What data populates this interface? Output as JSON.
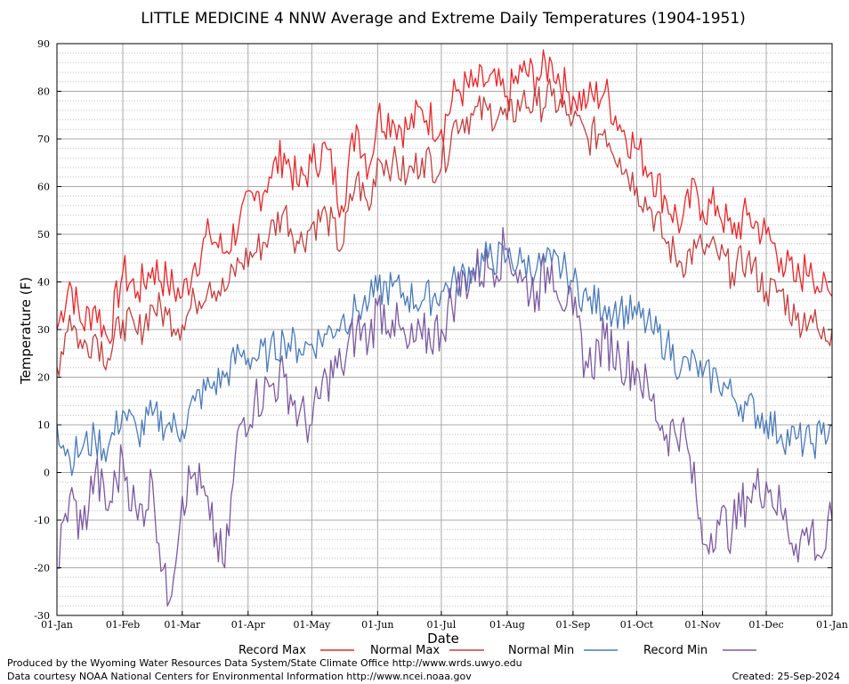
{
  "chart_data": {
    "type": "line",
    "title": "LITTLE MEDICINE 4 NNW Average and Extreme Daily Temperatures (1904-1951)",
    "xlabel": "Date",
    "ylabel": "Temperature (F)",
    "ylim": [
      -30,
      90
    ],
    "y_ticks": [
      "-30",
      "-20",
      "-10",
      "0",
      "10",
      "20",
      "30",
      "40",
      "50",
      "60",
      "70",
      "80",
      "90"
    ],
    "x_ticks": [
      "01-Jan",
      "01-Feb",
      "01-Mar",
      "01-Apr",
      "01-May",
      "01-Jun",
      "01-Jul",
      "01-Aug",
      "01-Sep",
      "01-Oct",
      "01-Nov",
      "01-Dec",
      "01-Jan"
    ],
    "x_tick_days": [
      0,
      31,
      59,
      90,
      120,
      151,
      181,
      212,
      243,
      273,
      304,
      334,
      365
    ],
    "grid": true,
    "legend_position": "bottom",
    "series": [
      {
        "name": "Record Max",
        "color": "#e8262a",
        "x": [
          0,
          6,
          12,
          18,
          24,
          31,
          38,
          45,
          52,
          59,
          65,
          72,
          79,
          86,
          93,
          100,
          107,
          114,
          120,
          127,
          134,
          141,
          147,
          151,
          158,
          165,
          172,
          181,
          188,
          196,
          203,
          212,
          219,
          226,
          233,
          240,
          243,
          250,
          258,
          265,
          273,
          280,
          287,
          294,
          301,
          304,
          311,
          318,
          325,
          334,
          341,
          348,
          355,
          360,
          365
        ],
        "y": [
          30,
          40,
          31,
          35,
          28,
          42,
          38,
          43,
          40,
          37,
          44,
          50,
          46,
          53,
          57,
          62,
          67,
          60,
          65,
          68,
          56,
          73,
          64,
          75,
          74,
          72,
          76,
          72,
          80,
          81,
          82,
          79,
          84,
          83,
          86,
          80,
          79,
          78,
          80,
          73,
          68,
          63,
          57,
          52,
          60,
          55,
          56,
          50,
          54,
          50,
          45,
          40,
          44,
          38,
          37
        ]
      },
      {
        "name": "Normal Max",
        "color": "#c04040",
        "x": [
          0,
          6,
          12,
          18,
          24,
          31,
          38,
          45,
          52,
          59,
          65,
          72,
          79,
          86,
          93,
          100,
          107,
          114,
          120,
          127,
          134,
          141,
          147,
          151,
          158,
          165,
          172,
          181,
          188,
          196,
          203,
          212,
          219,
          226,
          233,
          240,
          243,
          250,
          258,
          265,
          273,
          280,
          287,
          294,
          301,
          304,
          311,
          318,
          325,
          334,
          341,
          348,
          355,
          360,
          365
        ],
        "y": [
          22,
          33,
          26,
          29,
          24,
          32,
          29,
          35,
          33,
          31,
          36,
          40,
          38,
          44,
          46,
          50,
          55,
          48,
          52,
          54,
          47,
          62,
          55,
          66,
          65,
          62,
          66,
          64,
          74,
          75,
          76,
          74,
          78,
          77,
          79,
          75,
          74,
          70,
          72,
          66,
          60,
          55,
          48,
          44,
          47,
          47,
          46,
          42,
          45,
          38,
          38,
          32,
          33,
          28,
          30
        ]
      },
      {
        "name": "Normal Min",
        "color": "#4a7ab8",
        "x": [
          0,
          6,
          12,
          18,
          24,
          31,
          38,
          45,
          52,
          59,
          65,
          72,
          79,
          86,
          93,
          100,
          107,
          114,
          120,
          127,
          134,
          141,
          147,
          151,
          158,
          165,
          172,
          181,
          188,
          196,
          203,
          212,
          219,
          226,
          233,
          240,
          243,
          250,
          258,
          265,
          273,
          280,
          287,
          294,
          301,
          304,
          311,
          318,
          325,
          334,
          341,
          348,
          355,
          360,
          365
        ],
        "y": [
          10,
          3,
          5,
          7,
          5,
          13,
          8,
          12,
          10,
          9,
          15,
          18,
          20,
          25,
          24,
          25,
          28,
          26,
          27,
          29,
          32,
          34,
          36,
          38,
          39,
          37,
          36,
          38,
          40,
          43,
          45,
          45,
          44,
          43,
          44,
          42,
          40,
          36,
          35,
          34,
          33,
          30,
          27,
          22,
          23,
          20,
          20,
          16,
          14,
          11,
          8,
          7,
          6,
          8,
          10
        ]
      },
      {
        "name": "Record Min",
        "color": "#7b5aa0",
        "x": [
          0,
          6,
          12,
          18,
          24,
          31,
          38,
          45,
          52,
          59,
          65,
          72,
          79,
          86,
          93,
          100,
          107,
          114,
          120,
          127,
          134,
          141,
          147,
          151,
          158,
          165,
          172,
          181,
          188,
          196,
          203,
          212,
          219,
          226,
          233,
          240,
          243,
          250,
          258,
          265,
          273,
          280,
          287,
          294,
          301,
          304,
          311,
          318,
          325,
          334,
          341,
          348,
          355,
          360,
          365
        ],
        "y": [
          -20,
          -5,
          -12,
          0,
          -8,
          3,
          -10,
          -2,
          -28,
          -5,
          0,
          -10,
          -20,
          10,
          15,
          18,
          20,
          12,
          10,
          20,
          22,
          30,
          28,
          35,
          32,
          26,
          28,
          30,
          38,
          42,
          43,
          47,
          40,
          38,
          44,
          35,
          33,
          22,
          28,
          24,
          22,
          15,
          8,
          10,
          -5,
          -15,
          -10,
          -12,
          -5,
          -2,
          -8,
          -15,
          -12,
          -18,
          -10
        ]
      }
    ]
  },
  "legend": {
    "record_max": "Record Max",
    "normal_max": "Normal Max",
    "normal_min": "Normal Min",
    "record_min": "Record Min"
  },
  "footer": {
    "produced_by": "Produced by the Wyoming Water Resources Data System/State Climate Office http://www.wrds.uwyo.edu",
    "courtesy": "Data courtesy NOAA National Centers for Environmental Information http://www.ncei.noaa.gov",
    "created": "Created:  25-Sep-2024"
  }
}
